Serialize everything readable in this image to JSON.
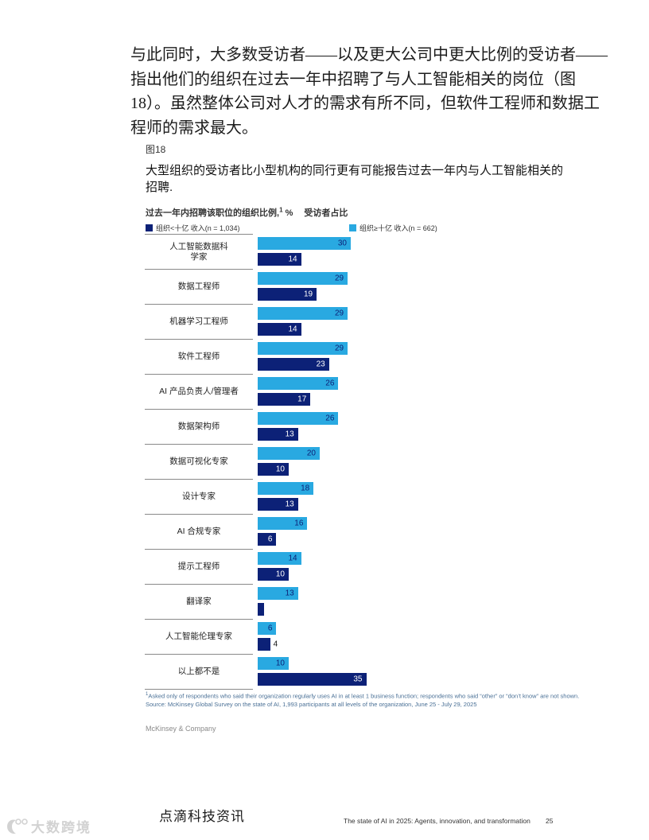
{
  "page": {
    "intro_paragraph": "与此同时，大多数受访者——以及更大公司中更大比例的受访者——指出他们的组织在过去一年中招聘了与人工智能相关的岗位（图18）。虽然整体公司对人才的需求有所不同，但软件工程师和数据工程师的需求最大。",
    "figure_label": "图18",
    "figure_title": "大型组织的受访者比小型机构的同行更有可能报告过去一年内与人工智能相关的招聘.",
    "axis_label_prefix": "过去一年内招聘该职位的组织比例,",
    "axis_label_sup": "1",
    "axis_label_suffix": " %",
    "axis_label_secondary": "受访者占比",
    "footnote_sup": "1",
    "footnote_line1": "Asked only of respondents who said their organization regularly uses AI in at least 1 business function; respondents who said “other” or “don’t know” are not shown.",
    "footnote_line2": "Source: McKinsey Global Survey on the state of AI, 1,993 participants at all levels of the organization, June 25 - July 29, 2025",
    "mckinsey_credit": "McKinsey & Company",
    "footer_left": "点滴科技资讯",
    "footer_right": "The state of AI in 2025: Agents, innovation, and transformation",
    "page_number": "25",
    "watermark_text": "大数跨境"
  },
  "colors": {
    "light_blue": "#29A9E1",
    "dark_navy": "#0C2177",
    "footnote_blue": "#4a7096"
  },
  "chart_data": {
    "type": "bar",
    "orientation": "horizontal",
    "title": "大型组织的受访者比小型机构的同行更有可能报告过去一年内与人工智能相关的招聘.",
    "value_axis_label": "过去一年内招聘该职位的组织比例,1 % 受访者占比",
    "legend_position": "top",
    "grid": false,
    "xlim": [
      0,
      36
    ],
    "legend": [
      {
        "label": "组织<十亿 收入(n = 1,034)",
        "color": "#0C2177"
      },
      {
        "label": "组织≥十亿 收入(n = 662)",
        "color": "#29A9E1"
      }
    ],
    "categories": [
      "人工智能数据科学家",
      "数据工程师",
      "机器学习工程师",
      "软件工程师",
      "AI 产品负责人/管理者",
      "数据架构师",
      "数据可视化专家",
      "设计专家",
      "AI 合规专家",
      "提示工程师",
      "翻译家",
      "人工智能伦理专家",
      "以上都不是"
    ],
    "series": [
      {
        "name": "组织≥十亿 收入(n = 662)",
        "color": "#29A9E1",
        "values": [
          30,
          29,
          29,
          29,
          26,
          26,
          20,
          18,
          16,
          14,
          13,
          6,
          10
        ]
      },
      {
        "name": "组织<十亿 收入(n = 1,034)",
        "color": "#0C2177",
        "values": [
          14,
          19,
          14,
          23,
          17,
          13,
          10,
          13,
          6,
          10,
          2,
          4,
          35
        ]
      }
    ],
    "rows": [
      {
        "label": "人工智能数据科\n学家",
        "large": 30,
        "small": 14,
        "large_label": "30",
        "small_label": "14"
      },
      {
        "label": "数据工程师",
        "large": 29,
        "small": 19,
        "large_label": "29",
        "small_label": "19"
      },
      {
        "label": "机器学习工程师",
        "large": 29,
        "small": 14,
        "large_label": "29",
        "small_label": "14"
      },
      {
        "label": "软件工程师",
        "large": 29,
        "small": 23,
        "large_label": "29",
        "small_label": "23"
      },
      {
        "label": "AI 产品负责人/管理者",
        "large": 26,
        "small": 17,
        "large_label": "26",
        "small_label": "17"
      },
      {
        "label": "数据架构师",
        "large": 26,
        "small": 13,
        "large_label": "26",
        "small_label": "13"
      },
      {
        "label": "数据可视化专家",
        "large": 20,
        "small": 10,
        "large_label": "20",
        "small_label": "10"
      },
      {
        "label": "设计专家",
        "large": 18,
        "small": 13,
        "large_label": "18",
        "small_label": "13"
      },
      {
        "label": "AI 合规专家",
        "large": 16,
        "small": 6,
        "large_label": "16",
        "small_label": "6"
      },
      {
        "label": "提示工程师",
        "large": 14,
        "small": 10,
        "large_label": "14",
        "small_label": "10"
      },
      {
        "label": "翻译家",
        "large": 13,
        "small": 2,
        "large_label": "13",
        "small_label": ""
      },
      {
        "label": "人工智能伦理专家",
        "large": 6,
        "small": 4,
        "large_label": "6",
        "small_label": "4"
      },
      {
        "label": "以上都不是",
        "large": 10,
        "small": 35,
        "large_label": "10",
        "small_label": "35"
      }
    ]
  }
}
